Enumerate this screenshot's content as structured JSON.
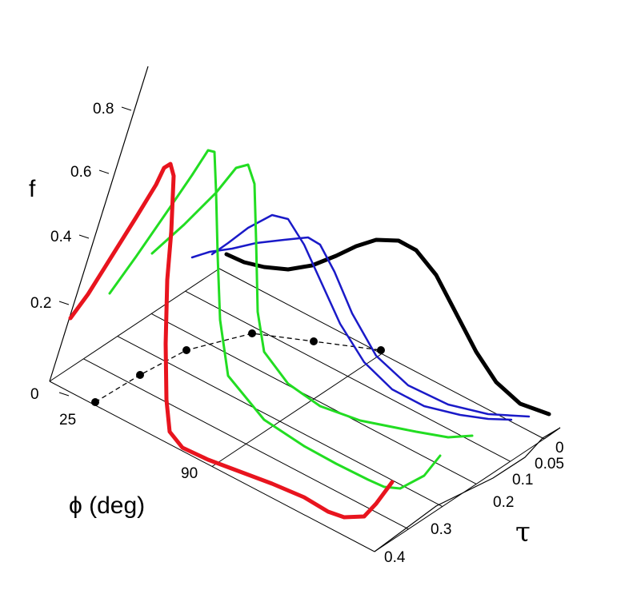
{
  "chart_data": {
    "type": "line",
    "projection": "3d",
    "zlabel": "f",
    "xlabel": "ϕ (deg)",
    "ylabel": "τ",
    "f_ticks": [
      "0",
      "0.2",
      "0.4",
      "0.6",
      "0.8"
    ],
    "phi_ticks": [
      "25",
      "90"
    ],
    "tau_ticks": [
      "0",
      "0.05",
      "0.1",
      "0.2",
      "0.3",
      "0.4"
    ],
    "grid": true,
    "colors": {
      "black": "#000000",
      "blue": "#1a1ac8",
      "green": "#22dd22",
      "red": "#e8141e"
    },
    "series_tau": [
      0,
      0.05,
      0.1,
      0.2,
      0.3,
      0.4
    ],
    "series_color_keys": [
      "black",
      "blue",
      "blue",
      "green",
      "green",
      "red"
    ],
    "peaks": [
      {
        "tau": 0.0,
        "phi": 71,
        "f": 0.52
      },
      {
        "tau": 0.05,
        "phi": 62,
        "f": 0.52
      },
      {
        "tau": 0.1,
        "phi": 57,
        "f": 0.53
      },
      {
        "tau": 0.2,
        "phi": 55,
        "f": 0.51
      },
      {
        "tau": 0.3,
        "phi": 49,
        "f": 0.48
      },
      {
        "tau": 0.4,
        "phi": 25,
        "f": 0.0
      }
    ]
  }
}
